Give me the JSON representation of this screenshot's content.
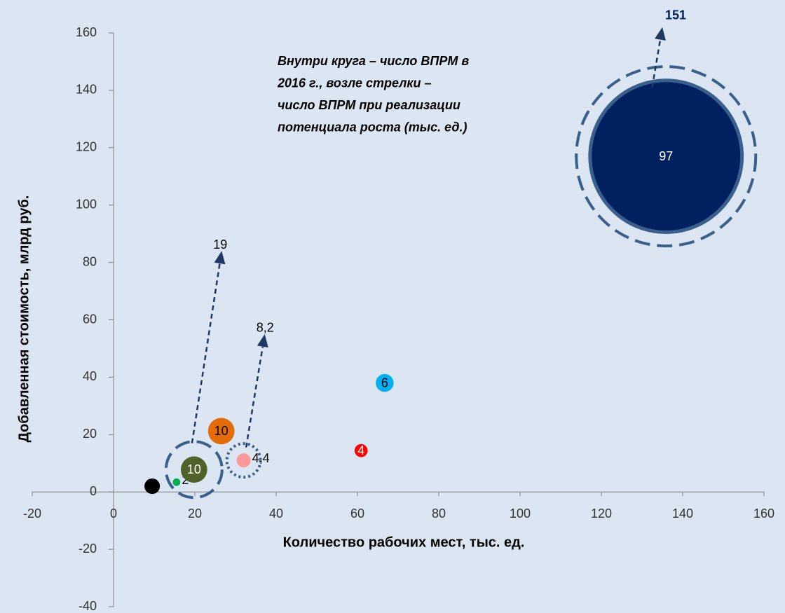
{
  "chart_data": {
    "type": "bubble",
    "xlabel": "Количество рабочих мест, тыс. ед.",
    "ylabel": "Добавленная стоимость, млрд руб.",
    "note": [
      "Внутри круга – число ВПРМ в",
      "2016 г., возле стрелки –",
      "число ВПРМ при реализации",
      "потенциала роста (тыс. ед.)"
    ],
    "xlim": [
      -20,
      160
    ],
    "ylim": [
      -40,
      160
    ],
    "xticks": [
      -20,
      0,
      20,
      40,
      60,
      80,
      100,
      120,
      140,
      160
    ],
    "yticks": [
      -40,
      -20,
      0,
      20,
      40,
      60,
      80,
      100,
      120,
      140,
      160
    ],
    "x": [
      9.5,
      15.5,
      19.8,
      26.5,
      32,
      60.9,
      66.7,
      135.9
    ],
    "y": [
      2,
      3.4,
      7.8,
      21.2,
      11,
      14.4,
      38,
      117
    ],
    "sizes": [
      5,
      2,
      10,
      10,
      4.4,
      4,
      6,
      97
    ],
    "size_labels": [
      null,
      "2",
      "10",
      "10",
      "4,4",
      "4",
      "6",
      "97"
    ],
    "colors": [
      "#000000",
      "#00b050",
      "#4f6228",
      "#e36c09",
      "#ff9999",
      "#ff0000",
      "#00b0f0",
      "#002060"
    ],
    "label_colors": [
      "#000000",
      "#000000",
      "#ffffff",
      "#000000",
      "#000000",
      "#ffffff",
      "#000000",
      "#ffffff"
    ],
    "arrows": [
      {
        "value": 19,
        "x": [
          19.3,
          26.6
        ],
        "y": [
          17,
          84
        ],
        "ring": "dashed",
        "color": "#000000"
      },
      {
        "value": {
          "value": 8.2,
          "label": "8,2"
        },
        "x": [
          32.6,
          37.2
        ],
        "y": [
          15.5,
          55
        ],
        "ring": "dotted",
        "color": "#000000"
      },
      {
        "value": 151,
        "x": [
          132.5,
          135
        ],
        "y": [
          141,
          162
        ],
        "ring": "dashed",
        "color": "#002060"
      }
    ],
    "rings": [
      {
        "x": 19.8,
        "y": 7.8,
        "r": 40
      },
      {
        "x": 32,
        "y": 11,
        "r": 24
      },
      {
        "x": 135.9,
        "y": 117,
        "r": 128
      }
    ]
  }
}
